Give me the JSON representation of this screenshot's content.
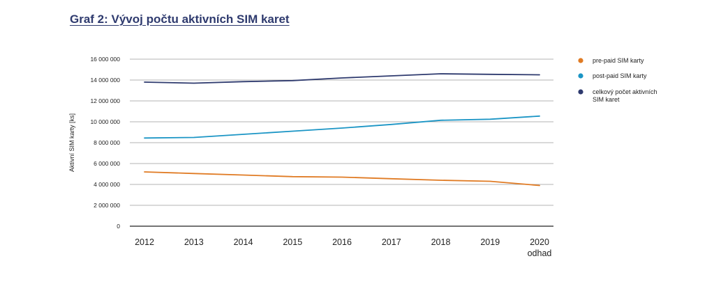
{
  "page": {
    "title": "Graf 2: Vývoj počtu aktivních SIM karet"
  },
  "chart_data": {
    "type": "line",
    "title": "Graf 2: Vývoj počtu aktivních SIM karet",
    "xlabel": "",
    "ylabel": "Aktivní SIM karty [ks]",
    "categories": [
      "2012",
      "2013",
      "2014",
      "2015",
      "2016",
      "2017",
      "2018",
      "2019",
      "2020"
    ],
    "category_sublabels": [
      "",
      "",
      "",
      "",
      "",
      "",
      "",
      "",
      "odhad"
    ],
    "ylim": [
      0,
      16000000
    ],
    "yticks": [
      0,
      2000000,
      4000000,
      6000000,
      8000000,
      10000000,
      12000000,
      14000000,
      16000000
    ],
    "ytick_labels": [
      "0",
      "2 000 000",
      "4 000 000",
      "6 000 000",
      "8 000 000",
      "10 000 000",
      "12 000 000",
      "14 000 000",
      "16 000 000"
    ],
    "grid": true,
    "legend_position": "right",
    "series": [
      {
        "name": "pre-paid SIM karty",
        "legend_lines": [
          "pre-paid SIM karty"
        ],
        "color": "#e07b24",
        "values": [
          5200000,
          5050000,
          4900000,
          4750000,
          4700000,
          4550000,
          4400000,
          4300000,
          3900000
        ]
      },
      {
        "name": "post-paid SIM karty",
        "legend_lines": [
          "post-paid SIM karty"
        ],
        "color": "#1b95c5",
        "values": [
          8450000,
          8500000,
          8800000,
          9100000,
          9400000,
          9750000,
          10150000,
          10250000,
          10550000
        ]
      },
      {
        "name": "celkový počet aktivních SIM karet",
        "legend_lines": [
          "celkový počet aktivních",
          "SIM karet"
        ],
        "color": "#2e3a6e",
        "values": [
          13800000,
          13700000,
          13850000,
          13950000,
          14200000,
          14400000,
          14600000,
          14550000,
          14500000
        ]
      }
    ]
  }
}
